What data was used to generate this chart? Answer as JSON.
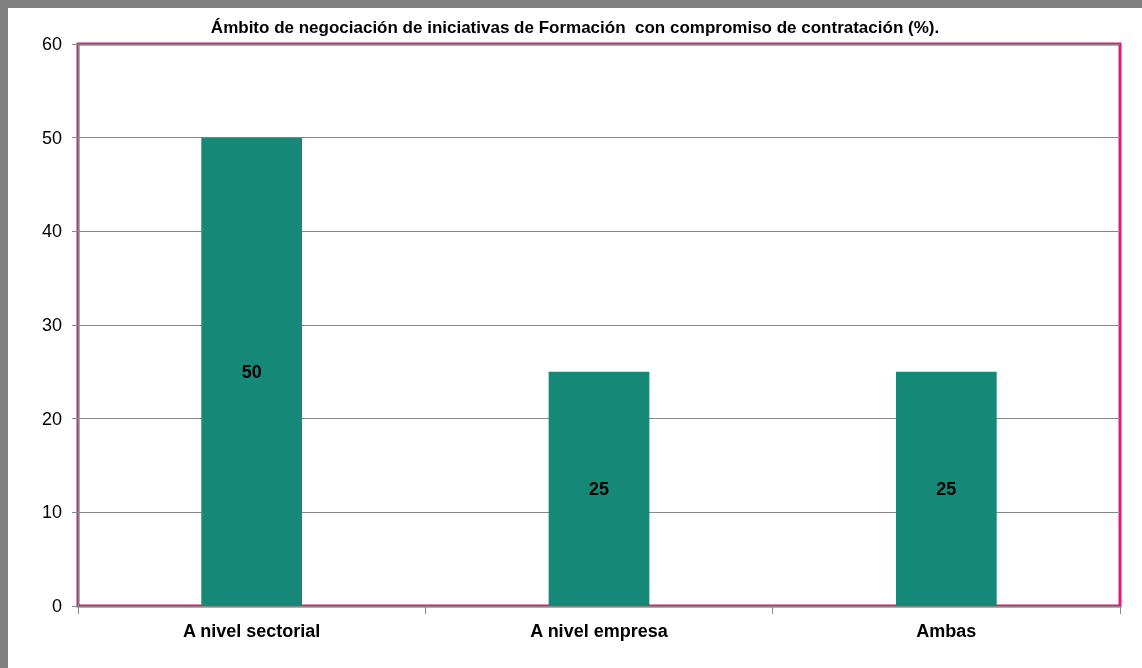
{
  "chart_data": {
    "type": "bar",
    "title": "Ámbito de negociación de iniciativas de Formación  con compromiso de contratación (%).",
    "categories": [
      "A nivel sectorial",
      "A nivel empresa",
      "Ambas"
    ],
    "values": [
      50,
      25,
      25
    ],
    "color": "#168878",
    "ylim": [
      0,
      60
    ],
    "yticks": [
      0,
      10,
      20,
      30,
      40,
      50,
      60
    ],
    "grid": "y",
    "data_labels": true
  }
}
